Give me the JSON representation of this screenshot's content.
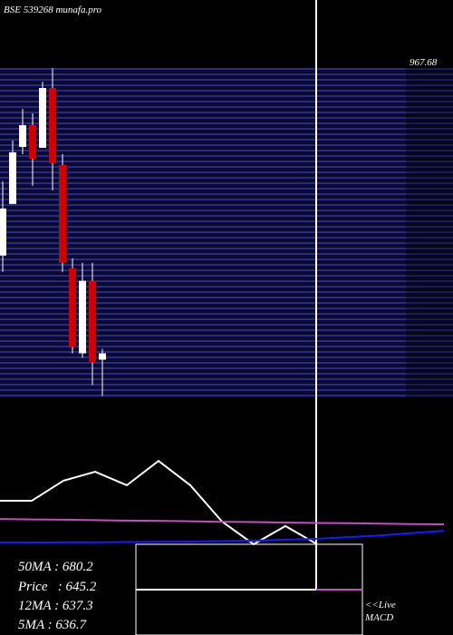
{
  "header": {
    "title": "BSE 539268 munafa.pro",
    "level_label": "967.68"
  },
  "chart_data": {
    "type": "candlestick",
    "ylim": [
      597,
      1044
    ],
    "up_color": "#ffffff",
    "down_color": "#cc0000",
    "open": [
      757.8,
      815.6,
      879.5,
      903.8,
      878.5,
      945.4,
      859.2,
      743.6,
      648.3,
      729.4,
      641.2
    ],
    "close": [
      810.5,
      873.4,
      903.8,
      866.3,
      945.4,
      861.2,
      749.7,
      655.4,
      729.4,
      638.1,
      648.3
    ],
    "high": [
      840.9,
      886.6,
      922.0,
      917.0,
      952.5,
      967.7,
      871.4,
      754.7,
      749.7,
      749.7,
      653.3
    ],
    "low": [
      739.5,
      815.6,
      871.4,
      835.9,
      878.5,
      830.8,
      739.5,
      648.3,
      643.2,
      612.8,
      600.6
    ]
  },
  "indicator": {
    "type": "line",
    "ylim": [
      0,
      100
    ],
    "series": [
      {
        "color": "#ffffff",
        "values": [
          56.9,
          56.9,
          65.4,
          69.2,
          63.5,
          73.8,
          63.5,
          48.1,
          38.5,
          46.2,
          38.5
        ]
      },
      {
        "color": "#c050c0",
        "values": [
          49.2,
          49.0,
          48.9,
          48.7,
          48.5,
          48.4,
          48.2,
          48.0,
          47.9,
          47.7,
          47.5,
          47.4,
          47.2,
          47.0,
          46.9
        ]
      },
      {
        "color": "#1a1aff",
        "values": [
          39.2,
          39.2,
          39.3,
          39.3,
          39.4,
          39.5,
          39.6,
          39.8,
          40.0,
          40.4,
          40.8,
          41.5,
          42.2,
          43.2,
          44.2
        ]
      }
    ]
  },
  "info": {
    "lines": [
      "50MA : 680.2",
      "Price   : 645.2",
      "12MA : 637.3",
      "5MA : 636.7"
    ],
    "live": "<<Live",
    "macd": "MACD"
  }
}
